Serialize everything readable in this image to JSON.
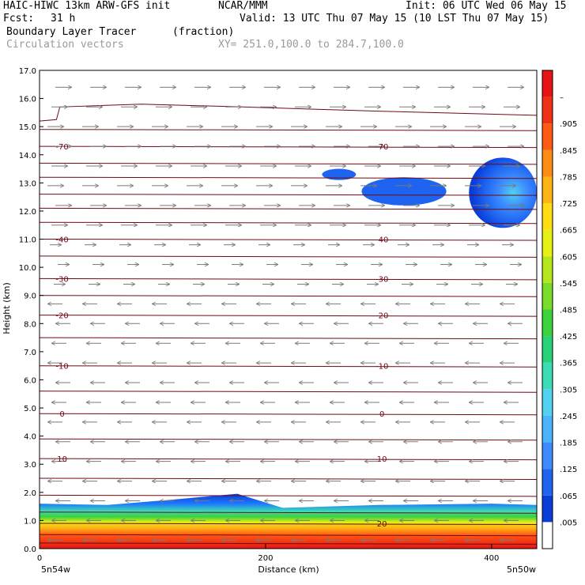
{
  "header": {
    "title": "HAIC-HIWC 13km ARW-GFS init",
    "org": "NCAR/MMM",
    "init": "Init: 06 UTC Wed 06 May 15",
    "fcst_label": "Fcst:",
    "fcst_value": "31 h",
    "valid": "Valid: 13 UTC Thu 07 May 15 (10 LST Thu 07 May 15)",
    "field_name": "Boundary Layer Tracer",
    "field_units": "(fraction)",
    "vector_label": "Circulation vectors",
    "xy_label": "XY= 251.0,100.0 to 284.7,100.0"
  },
  "chart_data": {
    "type": "heatmap",
    "xlabel": "Distance (km)",
    "ylabel": "Height (km)",
    "xlim": [
      0,
      440
    ],
    "ylim": [
      0,
      17
    ],
    "x_ticks": [
      0,
      200,
      400
    ],
    "y_ticks": [
      "0.0",
      "1.0",
      "2.0",
      "3.0",
      "4.0",
      "5.0",
      "6.0",
      "7.0",
      "8.0",
      "9.0",
      "10.0",
      "11.0",
      "12.0",
      "13.0",
      "14.0",
      "15.0",
      "16.0",
      "17.0"
    ],
    "x_end_labels": {
      "left": "5n54w",
      "right": "5n50w"
    },
    "colorbar": {
      "labels": [
        ".005",
        ".065",
        ".125",
        ".185",
        ".245",
        ".305",
        ".365",
        ".425",
        ".485",
        ".545",
        ".605",
        ".665",
        ".725",
        ".785",
        ".845",
        ".905",
        "–"
      ],
      "colors": [
        "#ffffff",
        "#0a3cd8",
        "#1e64f0",
        "#3c8cff",
        "#4ab4ff",
        "#50d2f0",
        "#3cdcb4",
        "#28d278",
        "#3cd23c",
        "#78dc28",
        "#b4e61e",
        "#e6f014",
        "#ffdc14",
        "#ffb414",
        "#ff8c14",
        "#ff5a14",
        "#f03214",
        "#e61414"
      ]
    },
    "temperature_contours": [
      {
        "label": "20",
        "height_km": 0.9
      },
      {
        "label": "10",
        "height_km": 3.2
      },
      {
        "label": "0",
        "height_km": 4.8
      },
      {
        "label": "-10",
        "height_km": 6.5
      },
      {
        "label": "-20",
        "height_km": 8.3
      },
      {
        "label": "-30",
        "height_km": 9.6
      },
      {
        "label": "-40",
        "height_km": 11.0
      },
      {
        "label": "-70",
        "height_km": 14.3
      }
    ],
    "contour_labels": [
      {
        "text": "20",
        "x_km": 303,
        "height_km": 0.9
      },
      {
        "text": "10",
        "x_km": 20,
        "height_km": 3.2
      },
      {
        "text": "10",
        "x_km": 303,
        "height_km": 3.2
      },
      {
        "text": "0",
        "x_km": 20,
        "height_km": 4.8
      },
      {
        "text": "0",
        "x_km": 303,
        "height_km": 4.8
      },
      {
        "text": "-10",
        "x_km": 20,
        "height_km": 6.5
      },
      {
        "text": "-10",
        "x_km": 303,
        "height_km": 6.5
      },
      {
        "text": "-20",
        "x_km": 20,
        "height_km": 8.3
      },
      {
        "text": "-20",
        "x_km": 303,
        "height_km": 8.3
      },
      {
        "text": "-30",
        "x_km": 20,
        "height_km": 9.6
      },
      {
        "text": "-30",
        "x_km": 303,
        "height_km": 9.6
      },
      {
        "text": "-40",
        "x_km": 20,
        "height_km": 11.0
      },
      {
        "text": "-40",
        "x_km": 303,
        "height_km": 11.0
      },
      {
        "text": "-70",
        "x_km": 20,
        "height_km": 14.3
      },
      {
        "text": "-70",
        "x_km": 303,
        "height_km": 14.3
      }
    ],
    "contour_heights_km": [
      0.2,
      0.5,
      0.9,
      1.3,
      1.9,
      2.5,
      3.2,
      3.9,
      4.8,
      5.6,
      6.5,
      7.5,
      8.3,
      9.0,
      9.6,
      10.4,
      11.0,
      11.6,
      12.1,
      12.6,
      13.2,
      13.7,
      14.3,
      14.9
    ],
    "tropopause_km": [
      [
        0,
        15.2
      ],
      [
        15,
        15.25
      ],
      [
        18,
        15.7
      ],
      [
        90,
        15.8
      ],
      [
        180,
        15.7
      ],
      [
        300,
        15.55
      ],
      [
        440,
        15.4
      ]
    ],
    "boundary_layer": [
      [
        0,
        1.6
      ],
      [
        60,
        1.55
      ],
      [
        120,
        1.75
      ],
      [
        175,
        1.95
      ],
      [
        215,
        1.45
      ],
      [
        300,
        1.55
      ],
      [
        400,
        1.6
      ],
      [
        440,
        1.55
      ]
    ],
    "upper_tracer": [
      {
        "x": [
          285,
          330,
          360
        ],
        "height_km": [
          12.2,
          13.2,
          13.4
        ]
      },
      {
        "x": [
          380,
          440
        ],
        "height_km": [
          11.4,
          13.9
        ]
      },
      {
        "x": [
          250,
          280
        ],
        "height_km": [
          13.1,
          13.5
        ]
      }
    ]
  }
}
